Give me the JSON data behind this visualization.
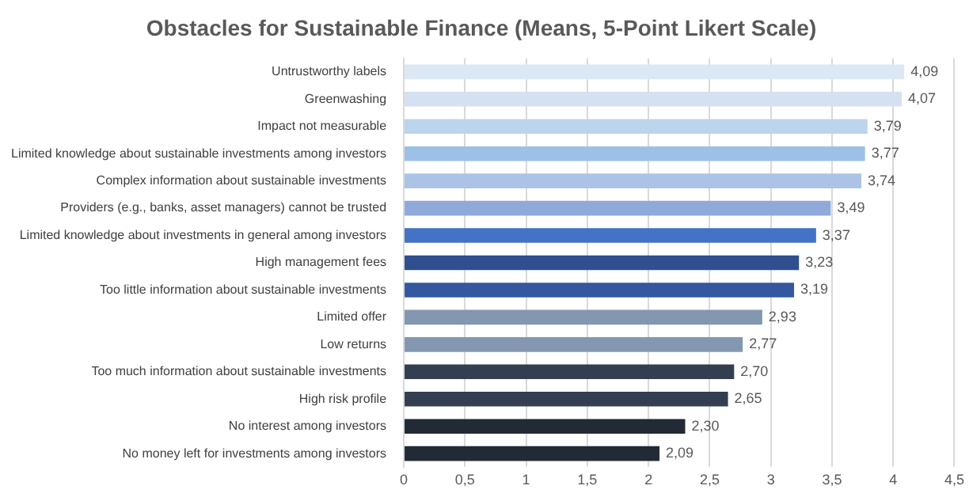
{
  "chart_data": {
    "type": "bar",
    "orientation": "horizontal",
    "title": "Obstacles for Sustainable Finance (Means, 5-Point Likert Scale)",
    "categories": [
      "Untrustworthy labels",
      "Greenwashing",
      "Impact not measurable",
      "Limited knowledge about sustainable investments among investors",
      "Complex information about sustainable investments",
      "Providers (e.g., banks, asset managers) cannot be trusted",
      "Limited knowledge about investments in general among investors",
      "High management fees",
      "Too little information about sustainable investments",
      "Limited offer",
      "Low returns",
      "Too much information about sustainable investments",
      "High risk profile",
      "No interest among investors",
      "No money left for investments among investors"
    ],
    "values": [
      4.09,
      4.07,
      3.79,
      3.77,
      3.74,
      3.49,
      3.37,
      3.23,
      3.19,
      2.93,
      2.77,
      2.7,
      2.65,
      2.3,
      2.09
    ],
    "value_labels": [
      "4,09",
      "4,07",
      "3,79",
      "3,77",
      "3,74",
      "3,49",
      "3,37",
      "3,23",
      "3,19",
      "2,93",
      "2,77",
      "2,70",
      "2,65",
      "2,30",
      "2,09"
    ],
    "colors": [
      "#dde8f5",
      "#d5e1f1",
      "#bcd4ec",
      "#9dc0e6",
      "#adc3e5",
      "#8fa9d9",
      "#4472c4",
      "#2f4f8f",
      "#34589f",
      "#8497b0",
      "#8497b0",
      "#333f50",
      "#333f50",
      "#222a35",
      "#222a35"
    ],
    "xlim": [
      0,
      4.5
    ],
    "xticks": [
      0,
      {
        "value": 0.5,
        "label": "0,5"
      },
      1,
      {
        "value": 1.5,
        "label": "1,5"
      },
      2,
      {
        "value": 2.5,
        "label": "2,5"
      },
      3,
      {
        "value": 3.5,
        "label": "3,5"
      },
      4,
      {
        "value": 4.5,
        "label": "4,5"
      }
    ],
    "grid": "x",
    "legend": false
  }
}
